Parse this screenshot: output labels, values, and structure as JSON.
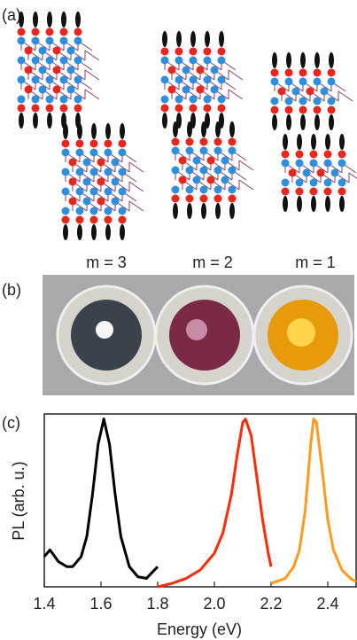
{
  "panels": {
    "labels": [
      "(a)",
      "(b)",
      "(c)"
    ],
    "m_labels": [
      "m = 3",
      "m = 2",
      "m = 1"
    ]
  },
  "chart_data": {
    "type": "line",
    "xlabel": "Energy (eV)",
    "ylabel": "PL (arb. u.)",
    "xlim": [
      1.4,
      2.5
    ],
    "ylim": [
      0,
      1.03
    ],
    "xticks": [
      1.4,
      1.6,
      1.8,
      {
        "value": 2,
        "label": "2.0"
      },
      2.2,
      2.4
    ],
    "series": [
      {
        "color": "#000000",
        "x": [
          1.4,
          1.42,
          1.45,
          1.48,
          1.5,
          1.53,
          1.55,
          1.57,
          1.59,
          1.61,
          1.63,
          1.65,
          1.67,
          1.7,
          1.73,
          1.76,
          1.8
        ],
        "values": [
          0.18,
          0.22,
          0.15,
          0.12,
          0.12,
          0.18,
          0.3,
          0.55,
          0.85,
          1.0,
          0.85,
          0.55,
          0.3,
          0.12,
          0.06,
          0.05,
          0.12
        ]
      },
      {
        "color": "#ff2a0a",
        "x": [
          1.8,
          1.85,
          1.9,
          1.95,
          2.0,
          2.03,
          2.06,
          2.08,
          2.1,
          2.11,
          2.13,
          2.15,
          2.17,
          2.19,
          2.2
        ],
        "values": [
          0.0,
          0.02,
          0.05,
          0.1,
          0.2,
          0.32,
          0.55,
          0.78,
          0.98,
          1.0,
          0.9,
          0.65,
          0.4,
          0.2,
          0.12
        ]
      },
      {
        "color": "#ff9a1a",
        "x": [
          2.2,
          2.25,
          2.28,
          2.3,
          2.32,
          2.34,
          2.35,
          2.36,
          2.38,
          2.4,
          2.42,
          2.45,
          2.48,
          2.5
        ],
        "values": [
          0.02,
          0.05,
          0.12,
          0.22,
          0.45,
          0.85,
          1.0,
          0.98,
          0.7,
          0.4,
          0.22,
          0.1,
          0.05,
          0.03
        ]
      }
    ]
  }
}
